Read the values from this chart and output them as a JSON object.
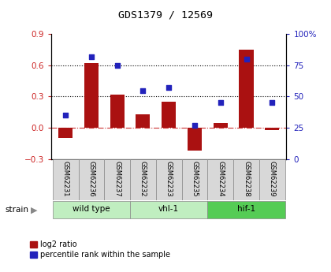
{
  "title": "GDS1379 / 12569",
  "samples": [
    "GSM62231",
    "GSM62236",
    "GSM62237",
    "GSM62232",
    "GSM62233",
    "GSM62235",
    "GSM62234",
    "GSM62238",
    "GSM62239"
  ],
  "log2_ratio": [
    -0.1,
    0.62,
    0.32,
    0.13,
    0.25,
    -0.22,
    0.05,
    0.75,
    -0.02
  ],
  "percentile": [
    35,
    82,
    75,
    55,
    57,
    27,
    45,
    80,
    45
  ],
  "groups": [
    {
      "label": "wild type",
      "start": 0,
      "end": 3,
      "color": "#c0eec0"
    },
    {
      "label": "vhl-1",
      "start": 3,
      "end": 6,
      "color": "#c0eec0"
    },
    {
      "label": "hif-1",
      "start": 6,
      "end": 9,
      "color": "#55cc55"
    }
  ],
  "ylim_left": [
    -0.3,
    0.9
  ],
  "ylim_right": [
    0,
    100
  ],
  "yticks_left": [
    -0.3,
    0.0,
    0.3,
    0.6,
    0.9
  ],
  "yticks_right": [
    0,
    25,
    50,
    75,
    100
  ],
  "hline_values": [
    0.3,
    0.6
  ],
  "bar_color": "#aa1111",
  "dot_color": "#2222bb",
  "zero_line_color": "#cc3333",
  "grid_color": "#000000",
  "left_tick_color": "#cc2222",
  "right_tick_color": "#2222bb",
  "bar_width": 0.55
}
